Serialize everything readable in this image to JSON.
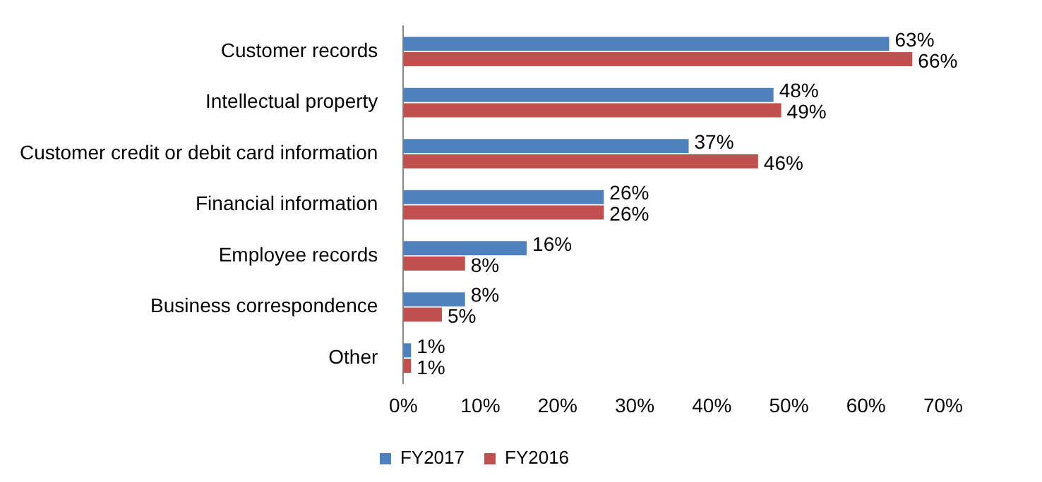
{
  "chart_data": {
    "type": "bar",
    "orientation": "horizontal",
    "categories": [
      "Customer records",
      "Intellectual property",
      "Customer credit or debit card information",
      "Financial information",
      "Employee records",
      "Business correspondence",
      "Other"
    ],
    "series": [
      {
        "name": "FY2017",
        "color": "#4f81bd",
        "values": [
          63,
          48,
          37,
          26,
          16,
          8,
          1
        ],
        "value_labels": [
          "63%",
          "48%",
          "37%",
          "26%",
          "16%",
          "8%",
          "1%"
        ]
      },
      {
        "name": "FY2016",
        "color": "#c0504d",
        "values": [
          66,
          49,
          46,
          26,
          8,
          5,
          1
        ],
        "value_labels": [
          "66%",
          "49%",
          "46%",
          "26%",
          "8%",
          "5%",
          "1%"
        ]
      }
    ],
    "xlim": [
      0,
      70
    ],
    "xticks": [
      {
        "value": 0,
        "label": "0%"
      },
      {
        "value": 10,
        "label": "10%"
      },
      {
        "value": 20,
        "label": "20%"
      },
      {
        "value": 30,
        "label": "30%"
      },
      {
        "value": 40,
        "label": "40%"
      },
      {
        "value": 50,
        "label": "50%"
      },
      {
        "value": 60,
        "label": "60%"
      },
      {
        "value": 70,
        "label": "70%"
      }
    ],
    "grid": false,
    "legend": "bottom"
  }
}
